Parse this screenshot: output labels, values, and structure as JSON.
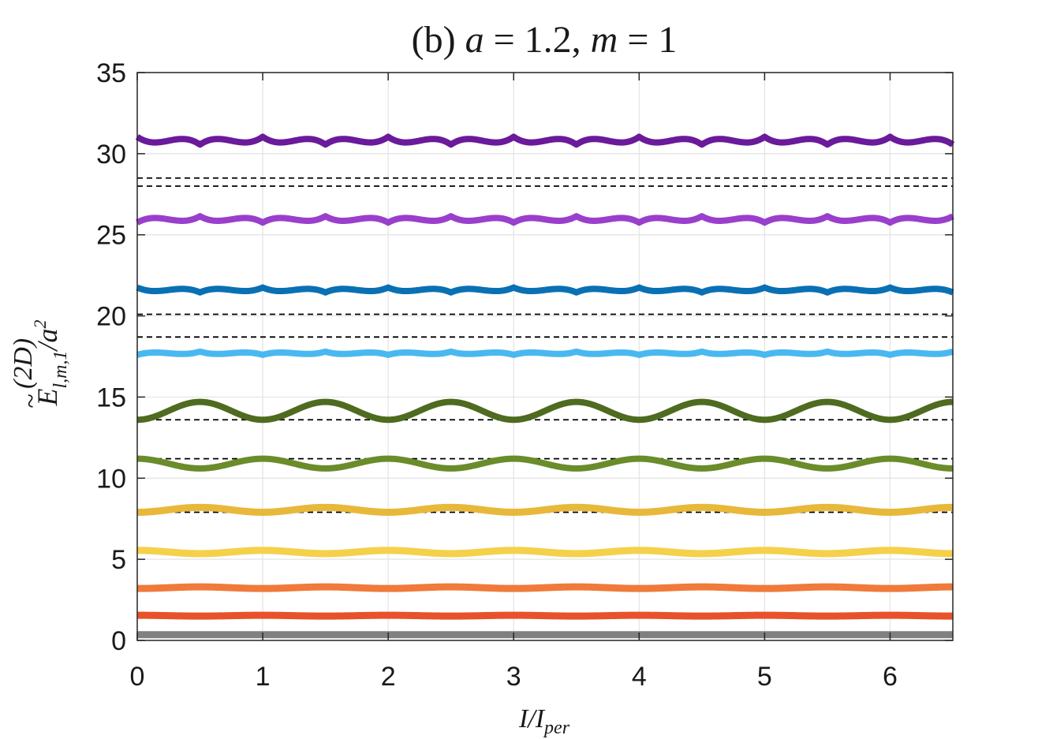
{
  "chart_data": {
    "type": "line",
    "title": "(b) a = 1.2, m = 1",
    "title_parts": {
      "prefix": "(b) ",
      "a_sym": "a",
      "a_eq": " = 1.2, ",
      "m_sym": "m",
      "m_eq": " = 1"
    },
    "xlabel": "I/I_per",
    "xlabel_parts": {
      "main": "I/I",
      "sub": "per"
    },
    "ylabel": "Ẽ^(2D)_{l,m,1}/a^2",
    "ylabel_parts": {
      "tilde": "~",
      "E": "E",
      "sup": "(2D)",
      "sub": "l,m,1",
      "tail": "/a",
      "sq": "2"
    },
    "xlim": [
      0,
      6.5
    ],
    "ylim": [
      0,
      35
    ],
    "xticks": [
      0,
      1,
      2,
      3,
      4,
      5,
      6
    ],
    "yticks": [
      0,
      5,
      10,
      15,
      20,
      25,
      30,
      35
    ],
    "grid": true,
    "period": 1,
    "series": [
      {
        "band_min": 0.35,
        "band_max": 0.35,
        "color": "#808080",
        "phase": "max_at_integer",
        "width": 9
      },
      {
        "band_min": 1.5,
        "band_max": 1.55,
        "color": "#e8522a",
        "phase": "max_at_integer",
        "width": 9
      },
      {
        "band_min": 3.2,
        "band_max": 3.3,
        "color": "#f07a3a",
        "phase": "min_at_integer",
        "width": 9
      },
      {
        "band_min": 5.35,
        "band_max": 5.55,
        "color": "#f5d04a",
        "phase": "max_at_integer",
        "width": 9
      },
      {
        "band_min": 7.9,
        "band_max": 8.2,
        "color": "#e8b83a",
        "phase": "min_at_integer",
        "width": 9
      },
      {
        "band_min": 10.6,
        "band_max": 11.2,
        "color": "#6a8c2a",
        "phase": "max_at_integer",
        "width": 8
      },
      {
        "band_min": 13.6,
        "band_max": 14.7,
        "color": "#4e6b20",
        "phase": "min_at_integer",
        "width": 8
      },
      {
        "band_min": 16.7,
        "band_max": 18.7,
        "color": "#4ab8f0",
        "phase": "max_at_integer",
        "width": 8
      },
      {
        "band_min": 20.1,
        "band_max": 23.1,
        "color": "#0a70b4",
        "phase": "min_at_integer",
        "width": 8
      },
      {
        "band_min": 24.0,
        "band_max": 27.9,
        "color": "#9a3fcc",
        "phase": "max_at_integer",
        "width": 8
      },
      {
        "band_min": 28.4,
        "band_max": 33.2,
        "color": "#6a1a9a",
        "phase": "min_at_integer",
        "width": 8
      }
    ],
    "reference_lines": [
      1.5,
      3.2,
      5.4,
      7.9,
      11.2,
      13.6,
      18.7,
      20.1,
      28.0,
      28.5
    ]
  }
}
